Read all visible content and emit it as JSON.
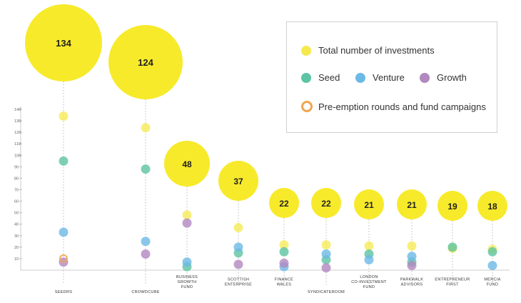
{
  "chart_data": {
    "type": "scatter",
    "ylim": [
      0,
      140
    ],
    "yticks": [
      10,
      20,
      30,
      40,
      50,
      60,
      70,
      80,
      90,
      100,
      110,
      120,
      130,
      140
    ],
    "categories": [
      [
        "SEEDRS"
      ],
      [
        "CROWDCUBE"
      ],
      [
        "BUSINESS",
        "GROWTH",
        "FUND"
      ],
      [
        "SCOTTISH",
        "ENTERPRISE"
      ],
      [
        "FINANCE",
        "WALES"
      ],
      [
        "SYNDICATEROOM"
      ],
      [
        "LONDON",
        "CO-INVESTMENT",
        "FUND"
      ],
      [
        "PARKWALK",
        "ADVISORS"
      ],
      [
        "ENTREPRENEUR",
        "FIRST"
      ],
      [
        "MERCIA",
        "FUND"
      ]
    ],
    "series": [
      {
        "name": "Total number of investments",
        "color": "#f5e94e",
        "values": [
          134,
          124,
          48,
          37,
          22,
          22,
          21,
          21,
          19,
          18
        ]
      },
      {
        "name": "Seed",
        "color": "#5cc4a3",
        "values": [
          95,
          88,
          3,
          15,
          16,
          9,
          14,
          7,
          20,
          16
        ]
      },
      {
        "name": "Venture",
        "color": "#6db9e6",
        "values": [
          33,
          25,
          7,
          20,
          3,
          14,
          9,
          12,
          null,
          4
        ]
      },
      {
        "name": "Growth",
        "color": "#b188c0",
        "values": [
          7,
          14,
          41,
          5,
          6,
          2,
          null,
          4,
          null,
          null
        ]
      },
      {
        "name": "Pre-emption rounds and fund campaigns",
        "color": "#f0a550",
        "values": [
          10,
          null,
          null,
          null,
          null,
          null,
          null,
          null,
          null,
          null
        ]
      }
    ],
    "total_bubble_labels": [
      "134",
      "124",
      "48",
      "37",
      "22",
      "22",
      "21",
      "21",
      "19",
      "18"
    ]
  },
  "legend": {
    "total": "Total number of investments",
    "seed": "Seed",
    "venture": "Venture",
    "growth": "Growth",
    "preemption": "Pre-emption rounds and fund campaigns"
  }
}
